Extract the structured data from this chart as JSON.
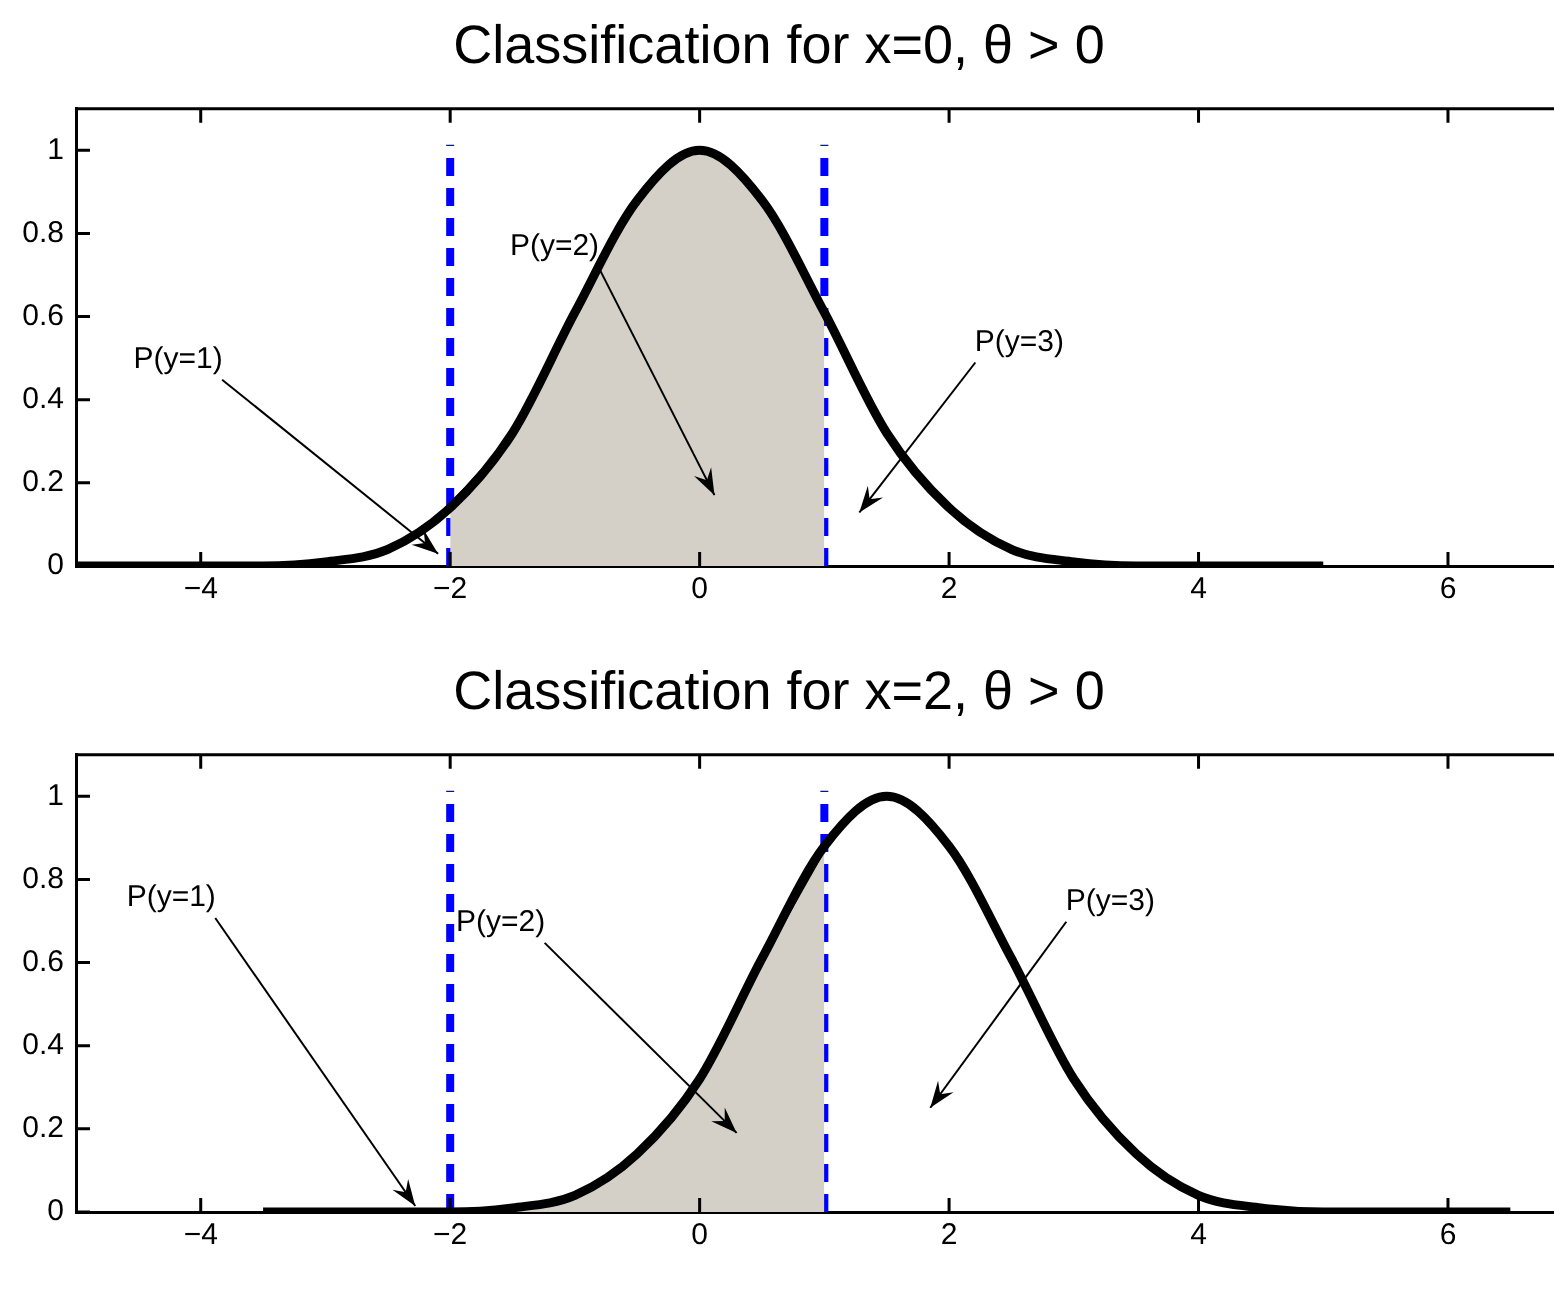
{
  "chart_data": [
    {
      "type": "line",
      "title": "Classification for x=0, θ > 0",
      "xlim": [
        -5,
        6.85
      ],
      "xticks": [
        -4,
        -2,
        0,
        2,
        4,
        6
      ],
      "ylim": [
        0,
        1.1
      ],
      "yticks": [
        0,
        0.2,
        0.4,
        0.6,
        0.8,
        1
      ],
      "grid": false,
      "legend": false,
      "series": [
        {
          "type": "area",
          "color": "#d4d0c8",
          "x": [
            -2,
            -1.5,
            -1,
            -0.5,
            0,
            0.5,
            1
          ],
          "values": [
            0.14,
            0.32,
            0.61,
            0.88,
            1,
            0.88,
            0.61
          ]
        },
        {
          "color": "#000000",
          "x": [
            -5,
            -4.5,
            -4,
            -3.5,
            -3,
            -2.5,
            -2,
            -1.5,
            -1,
            -0.5,
            0,
            0.5,
            1,
            1.5,
            2,
            2.5,
            3,
            3.5,
            4,
            4.5,
            5
          ],
          "values": [
            0,
            0,
            0,
            0,
            0.01,
            0.04,
            0.14,
            0.32,
            0.61,
            0.88,
            1,
            0.88,
            0.61,
            0.32,
            0.14,
            0.04,
            0.01,
            0,
            0,
            0,
            0
          ]
        }
      ],
      "ref_lines": [
        {
          "axis": "x",
          "value": -2,
          "color": "#0000ff",
          "line_style": "dashed"
        },
        {
          "axis": "x",
          "value": 1,
          "color": "#0000ff",
          "line_style": "dashed"
        }
      ],
      "annotations": [
        "P(y=1)",
        "P(y=2)",
        "P(y=3)"
      ]
    },
    {
      "type": "line",
      "title": "Classification for x=2, θ > 0",
      "xlim": [
        -5,
        6.85
      ],
      "xticks": [
        -4,
        -2,
        0,
        2,
        4,
        6
      ],
      "ylim": [
        0,
        1.1
      ],
      "yticks": [
        0,
        0.2,
        0.4,
        0.6,
        0.8,
        1
      ],
      "grid": false,
      "legend": false,
      "series": [
        {
          "type": "area",
          "color": "#d4d0c8",
          "x": [
            -2,
            -1.5,
            -1,
            -0.5,
            0,
            0.5,
            1
          ],
          "values": [
            0,
            0.01,
            0.04,
            0.14,
            0.32,
            0.61,
            0.88
          ]
        },
        {
          "color": "#000000",
          "x": [
            -3.5,
            -3,
            -2.5,
            -2,
            -1.5,
            -1,
            -0.5,
            0,
            0.5,
            1,
            1.5,
            2,
            2.5,
            3,
            3.5,
            4,
            4.5,
            5,
            5.5,
            6,
            6.5
          ],
          "values": [
            0,
            0,
            0,
            0,
            0.01,
            0.04,
            0.14,
            0.32,
            0.61,
            0.88,
            1,
            0.88,
            0.61,
            0.32,
            0.14,
            0.04,
            0.01,
            0,
            0,
            0,
            0
          ]
        }
      ],
      "ref_lines": [
        {
          "axis": "x",
          "value": -2,
          "color": "#0000ff",
          "line_style": "dashed"
        },
        {
          "axis": "x",
          "value": 1,
          "color": "#0000ff",
          "line_style": "dashed"
        }
      ],
      "annotations": [
        {
          "text": "P(y=1)",
          "x": -2.28,
          "y": 0
        },
        "P(y=2)",
        "P(y=3)"
      ]
    }
  ]
}
